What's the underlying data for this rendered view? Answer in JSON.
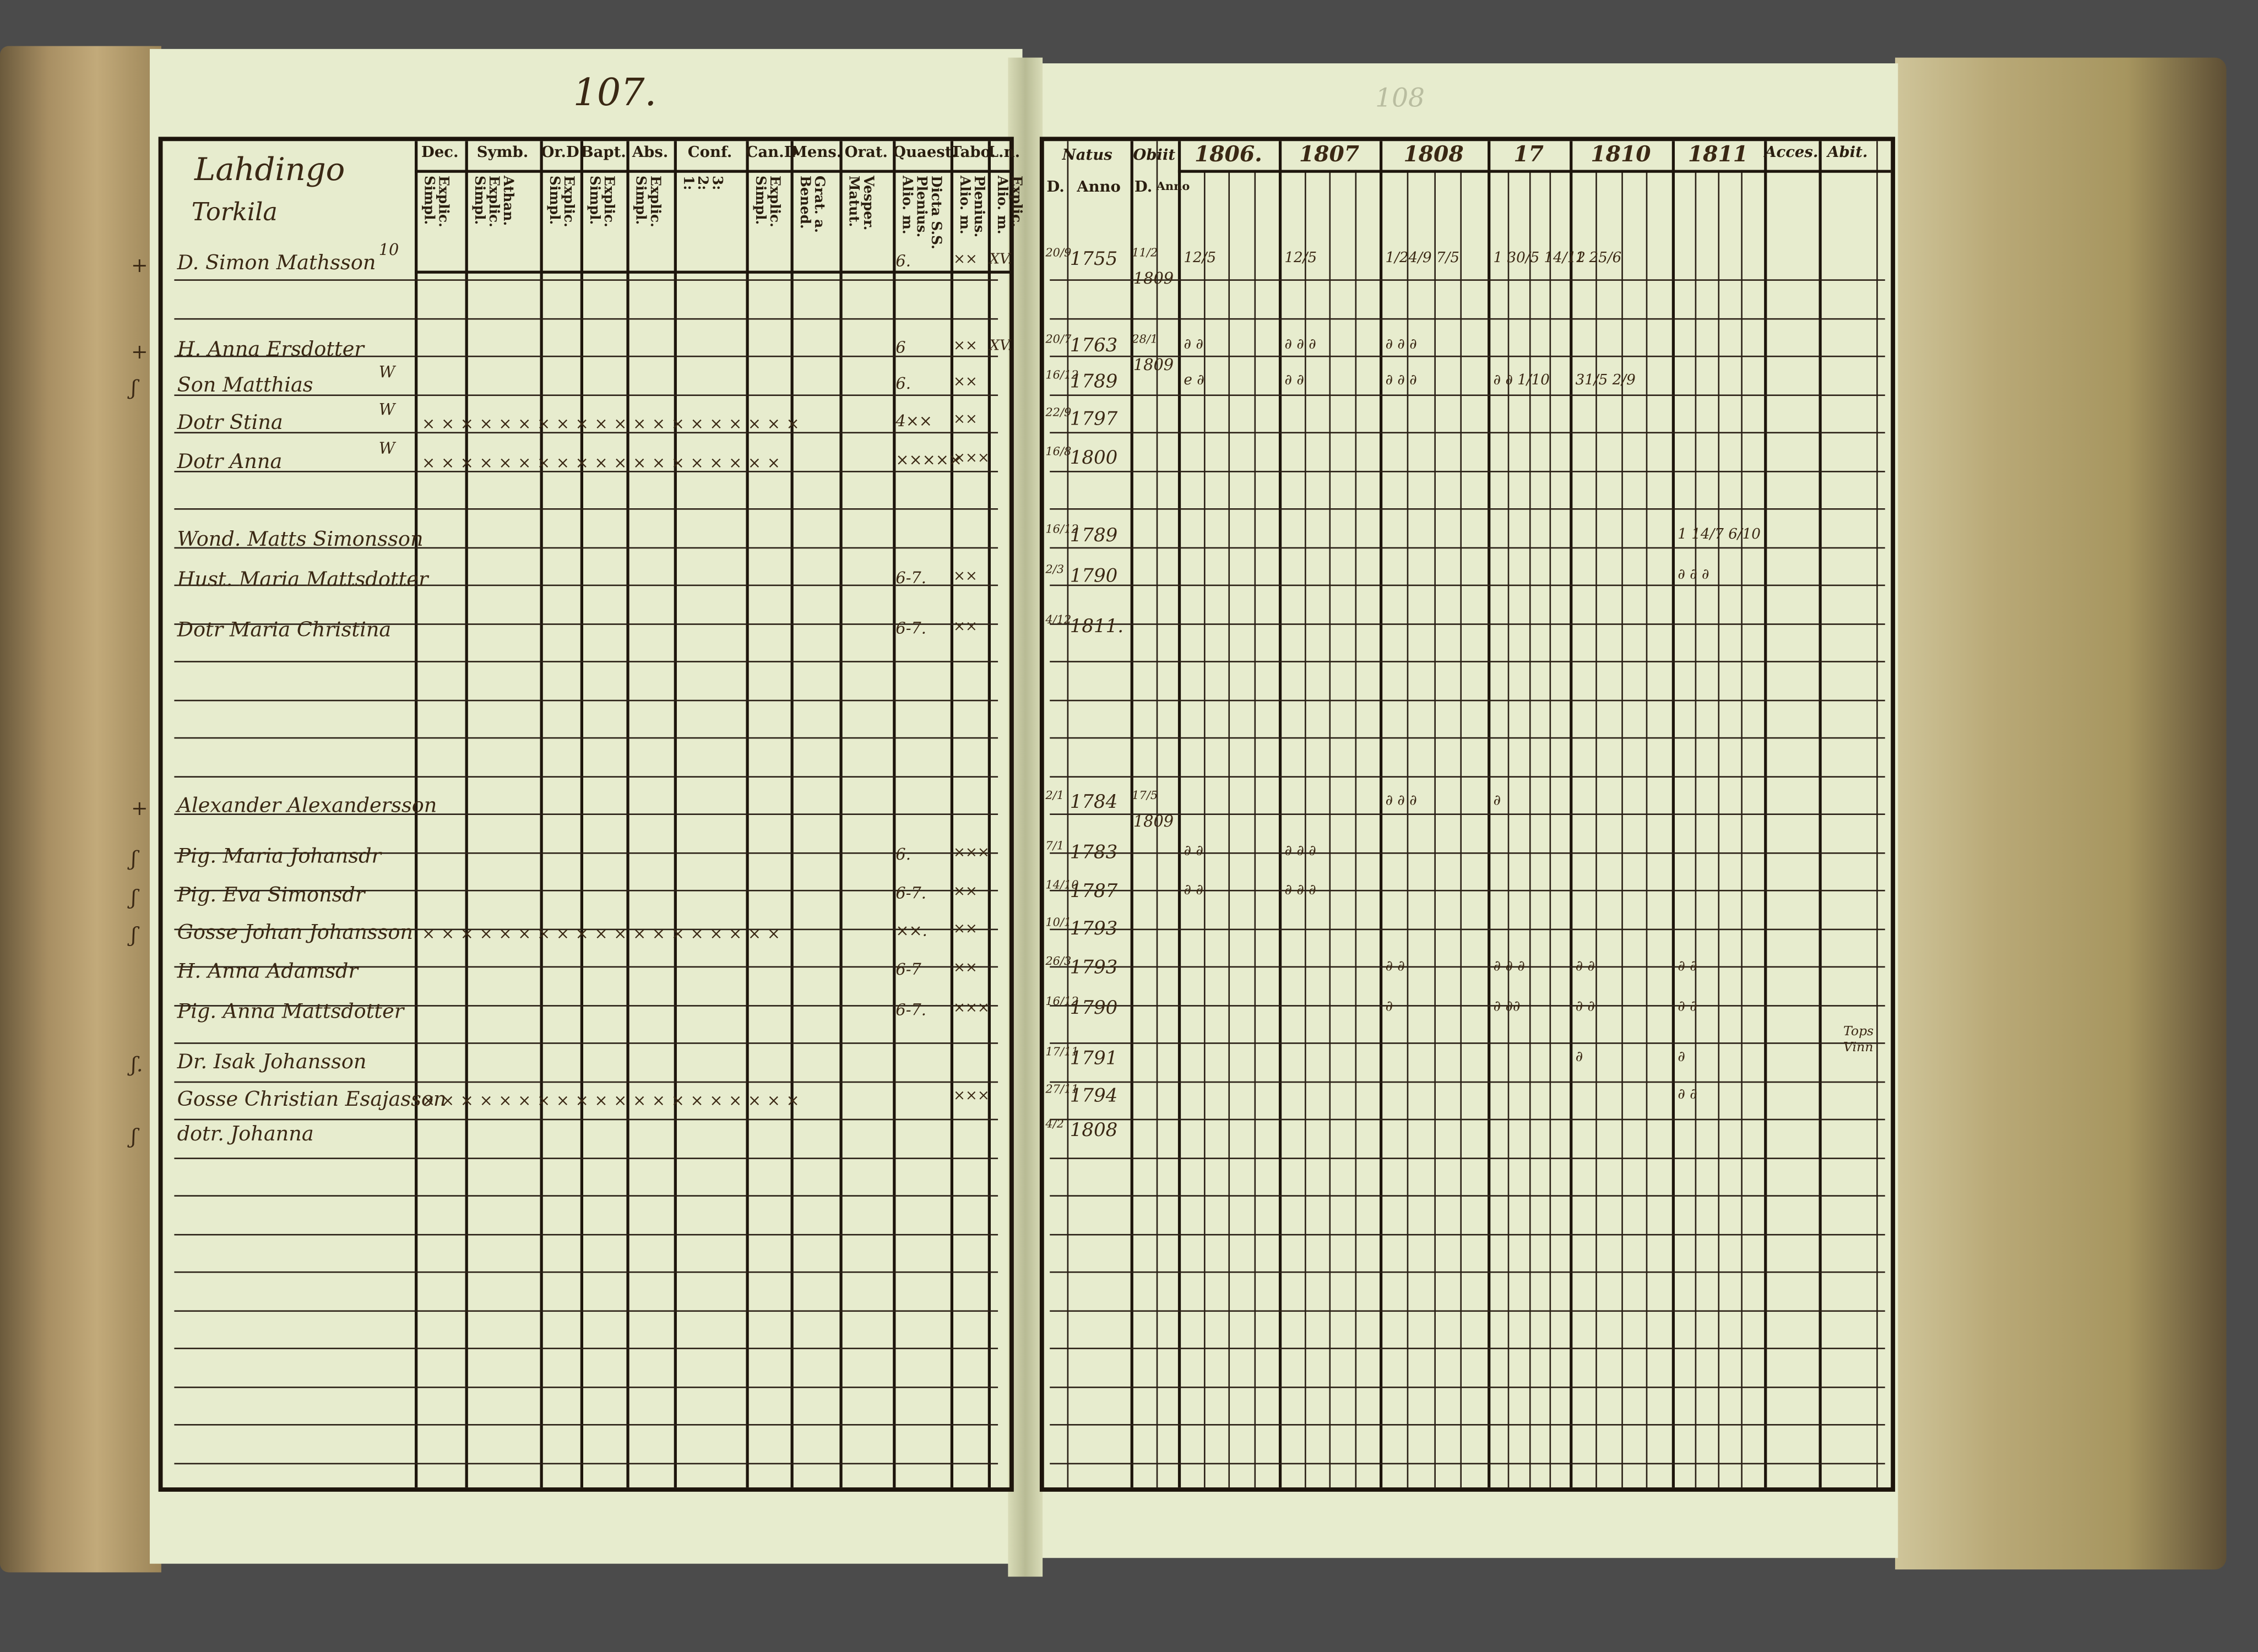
{
  "left_page": {
    "page_number": "107.",
    "place": [
      "Lahdingo",
      "Torkila"
    ],
    "columns": [
      {
        "label": "Dec.",
        "sub": "Explic.\nSimpl."
      },
      {
        "label": "Symb.",
        "sub": "Athan.\nExplic.\nSimpl."
      },
      {
        "label": "Or.D",
        "sub": "Explic.\nSimpl."
      },
      {
        "label": "Bapt.",
        "sub": "Explic.\nSimpl."
      },
      {
        "label": "Abs.",
        "sub": "Explic.\nSimpl."
      },
      {
        "label": "Conf.",
        "sub": "3:\n2:\n1:"
      },
      {
        "label": "Can.D",
        "sub": "Explic.\nSimpl."
      },
      {
        "label": "Mens.",
        "sub": "Grat. a.\nBened."
      },
      {
        "label": "Orat.",
        "sub": "Vesper.\nMatut."
      },
      {
        "label": "Quaest.",
        "sub": "Dicta S.S.\nPlenius.\nAlio. m."
      },
      {
        "label": "Tabo.",
        "sub": "Plenius.\nAlio. m."
      },
      {
        "label": "L.n.",
        "sub": "Explic.\nAlio. m."
      }
    ]
  },
  "right_page": {
    "page_number": "108",
    "natus": {
      "label": "Natus",
      "sub": [
        "D.",
        "Anno"
      ]
    },
    "obiit": {
      "label": "Obiit",
      "sub": [
        "D.",
        "Anno"
      ]
    },
    "years": [
      "1806.",
      "1807",
      "1808",
      "17",
      "1810",
      "1811"
    ],
    "acces": "Acces.",
    "abit": "Abit."
  },
  "rows": [
    {
      "mark": "+",
      "name": "D. Simon Mathsson",
      "note": "10",
      "cross": "",
      "quaest": "6.",
      "tabo": "××",
      "ln": "XV.",
      "natus_d": "20/9",
      "natus_y": "1755",
      "obiit_d": "11/2",
      "obiit_y": "1809",
      "years": [
        "12/5",
        "12/5",
        "1/24/9 7/5",
        "1 30/5 14/12",
        "1 25/6",
        ""
      ]
    },
    {
      "mark": "+",
      "name": "H. Anna Ersdotter",
      "note": "",
      "cross": "",
      "quaest": "6",
      "tabo": "××",
      "ln": "XV.",
      "natus_d": "20/7",
      "natus_y": "1763",
      "obiit_d": "28/1",
      "obiit_y": "1809",
      "years": [
        "∂   ∂",
        "∂ ∂ ∂",
        "∂ ∂ ∂",
        "",
        "",
        ""
      ]
    },
    {
      "mark": "ʃ",
      "name": "Son Matthias",
      "note": "W",
      "cross": "",
      "quaest": "6.",
      "tabo": "××",
      "ln": "",
      "natus_d": "16/12",
      "natus_y": "1789",
      "obiit_d": "",
      "obiit_y": "",
      "years": [
        "e   ∂",
        "∂ ∂",
        "∂ ∂ ∂",
        "∂ ∂ 1/10",
        "31/5 2/9",
        ""
      ]
    },
    {
      "mark": "",
      "name": "Dotr Stina",
      "note": "W",
      "cross": "× ×   × × ×   × ×   × × ×   × × ×   × × ×   × ×   × ×",
      "quaest": "4××",
      "tabo": "××",
      "ln": "",
      "natus_d": "22/9",
      "natus_y": "1797",
      "obiit_d": "",
      "obiit_y": "",
      "years": [
        "",
        "",
        "",
        "",
        "",
        ""
      ]
    },
    {
      "mark": "",
      "name": "Dotr Anna",
      "note": "W",
      "cross": "× ×   × × ×   × ×   × ×   × × ×   × × ×   × ×   × ×",
      "quaest": "×××××",
      "tabo": "×××",
      "ln": "",
      "natus_d": "16/8",
      "natus_y": "1800",
      "obiit_d": "",
      "obiit_y": "",
      "years": [
        "",
        "",
        "",
        "",
        "",
        ""
      ]
    },
    {
      "mark": "",
      "name": "Wond. Matts Simonsson",
      "note": "",
      "cross": "",
      "quaest": "",
      "tabo": "",
      "ln": "",
      "natus_d": "16/12",
      "natus_y": "1789",
      "obiit_d": "",
      "obiit_y": "",
      "years": [
        "",
        "",
        "",
        "",
        "",
        "1 14/7 6/10"
      ]
    },
    {
      "mark": "",
      "name": "Hust. Maria Mattsdotter",
      "note": "",
      "cross": "",
      "quaest": "6-7.",
      "tabo": "××",
      "ln": "",
      "natus_d": "2/3",
      "natus_y": "1790",
      "obiit_d": "",
      "obiit_y": "",
      "years": [
        "",
        "",
        "",
        "",
        "",
        "∂ ∂ ∂"
      ]
    },
    {
      "mark": "",
      "name": "Dotr Maria Christina",
      "note": "",
      "cross": "",
      "quaest": "6-7.",
      "tabo": "××",
      "ln": "",
      "natus_d": "4/12",
      "natus_y": "1811.",
      "obiit_d": "",
      "obiit_y": "",
      "years": [
        "",
        "",
        "",
        "",
        "",
        ""
      ]
    },
    {
      "mark": "+",
      "name": "Alexander Alexandersson",
      "note": "",
      "cross": "",
      "quaest": "",
      "tabo": "",
      "ln": "",
      "natus_d": "2/1",
      "natus_y": "1784",
      "obiit_d": "17/5",
      "obiit_y": "1809",
      "years": [
        "",
        "",
        "∂ ∂ ∂",
        "∂",
        "",
        ""
      ]
    },
    {
      "mark": "ʃ",
      "name": "Pig. Maria Johansdr",
      "note": "",
      "cross": "",
      "quaest": "6.",
      "tabo": "×××",
      "ln": "",
      "natus_d": "7/1",
      "natus_y": "1783",
      "obiit_d": "",
      "obiit_y": "",
      "years": [
        "∂   ∂",
        "∂ ∂ ∂",
        "",
        "",
        "",
        ""
      ]
    },
    {
      "mark": "ʃ",
      "name": "Pig. Eva Simonsdr",
      "note": "",
      "cross": "",
      "quaest": "6-7.",
      "tabo": "××",
      "ln": "",
      "natus_d": "14/10",
      "natus_y": "1787",
      "obiit_d": "",
      "obiit_y": "",
      "years": [
        "∂   ∂",
        "∂ ∂ ∂",
        "",
        "",
        "",
        ""
      ]
    },
    {
      "mark": "ʃ",
      "name": "Gosse Johan Johansson",
      "note": "",
      "cross": "× ×   × × ×   × ×   × ×   × × ×   × × ×   × ×   × ×",
      "quaest": "××.",
      "tabo": "××",
      "ln": "",
      "natus_d": "10/1",
      "natus_y": "1793",
      "obiit_d": "",
      "obiit_y": "",
      "years": [
        "",
        "",
        "",
        "",
        "",
        ""
      ]
    },
    {
      "mark": "",
      "name": "H. Anna Adamsdr",
      "note": "",
      "cross": "",
      "quaest": "6-7",
      "tabo": "××",
      "ln": "",
      "natus_d": "26/3",
      "natus_y": "1793",
      "obiit_d": "",
      "obiit_y": "",
      "years": [
        "",
        "",
        "∂ ∂",
        "∂ ∂ ∂",
        "∂ ∂",
        "∂ ∂"
      ]
    },
    {
      "mark": "",
      "name": "Pig. Anna Mattsdotter",
      "note": "",
      "cross": "",
      "quaest": "6-7.",
      "tabo": "×××",
      "ln": "",
      "natus_d": "16/12",
      "natus_y": "1790",
      "obiit_d": "",
      "obiit_y": "",
      "years": [
        "",
        "",
        "∂",
        "∂ ∂∂",
        "∂ ∂",
        "∂ ∂"
      ]
    },
    {
      "mark": "ʃ.",
      "name": "Dr. Isak Johansson",
      "note": "",
      "cross": "",
      "quaest": "",
      "tabo": "",
      "ln": "",
      "natus_d": "17/11",
      "natus_y": "1791",
      "obiit_d": "",
      "obiit_y": "",
      "years": [
        "",
        "",
        "",
        "",
        "∂",
        "∂"
      ]
    },
    {
      "mark": "",
      "name": "Gosse Christian Esajasson",
      "note": "",
      "cross": "× ×   × × ×   × ×   × ×   × ×   × × ×   × ×   × ×   × ×",
      "quaest": "",
      "tabo": "×××",
      "ln": "",
      "natus_d": "27/11",
      "natus_y": "1794",
      "obiit_d": "",
      "obiit_y": "",
      "years": [
        "",
        "",
        "",
        "",
        "",
        "∂ ∂"
      ]
    },
    {
      "mark": "ʃ",
      "name": "dotr. Johanna",
      "note": "",
      "cross": "",
      "quaest": "",
      "tabo": "",
      "ln": "",
      "natus_d": "4/2",
      "natus_y": "1808",
      "obiit_d": "",
      "obiit_y": "",
      "years": [
        "",
        "",
        "",
        "",
        "",
        ""
      ]
    }
  ],
  "abit_note": "Tops Vinn",
  "colors": {
    "paper": "#e7ecce",
    "ink": "#1d150c",
    "handwriting": "#3a2814",
    "background": "#4b4b4b",
    "page_edges": "#b9a977"
  }
}
